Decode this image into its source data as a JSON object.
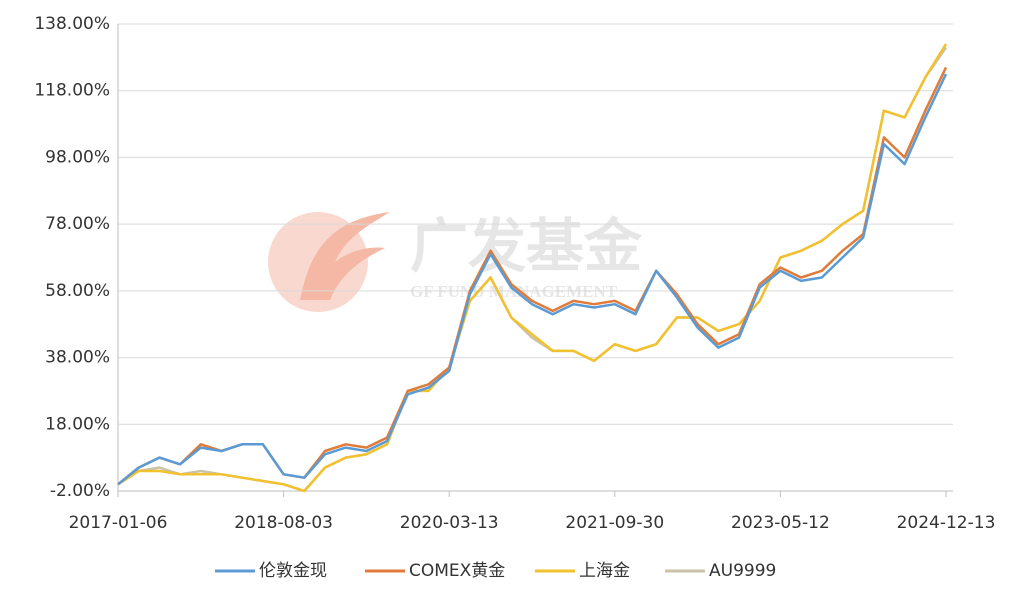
{
  "chart_data": {
    "type": "line",
    "watermark": {
      "title": "广发基金",
      "subtitle": "GF FUND MANAGEMENT"
    },
    "categories": [
      "2017-01-06",
      null,
      null,
      null,
      null,
      null,
      null,
      null,
      "2018-08-03",
      null,
      null,
      null,
      null,
      null,
      null,
      null,
      "2020-03-13",
      null,
      null,
      null,
      null,
      null,
      null,
      null,
      "2021-09-30",
      null,
      null,
      null,
      null,
      null,
      null,
      null,
      "2023-05-12",
      null,
      null,
      null,
      null,
      null,
      null,
      null,
      "2024-12-13"
    ],
    "series": [
      {
        "name": "伦敦金现",
        "color": "#5b9bd5",
        "values": [
          0,
          5,
          8,
          6,
          11,
          10,
          12,
          12,
          3,
          2,
          9,
          11,
          10,
          13,
          27,
          29,
          34,
          57,
          69,
          59,
          54,
          51,
          54,
          53,
          54,
          51,
          64,
          56,
          47,
          41,
          44,
          59,
          64,
          61,
          62,
          68,
          74,
          102,
          96,
          110,
          123
        ]
      },
      {
        "name": "COMEX黄金",
        "color": "#e07b39",
        "values": [
          0,
          5,
          8,
          6,
          12,
          10,
          12,
          12,
          3,
          2,
          10,
          12,
          11,
          14,
          28,
          30,
          35,
          58,
          70,
          60,
          55,
          52,
          55,
          54,
          55,
          52,
          64,
          57,
          48,
          42,
          45,
          60,
          65,
          62,
          64,
          70,
          75,
          104,
          98,
          112,
          125
        ]
      },
      {
        "name": "上海金",
        "color": "#f2c12e",
        "values": [
          0,
          4,
          4,
          3,
          3,
          3,
          2,
          1,
          0,
          -2,
          5,
          8,
          9,
          12,
          28,
          28,
          35,
          55,
          62,
          50,
          45,
          40,
          40,
          37,
          42,
          40,
          42,
          50,
          50,
          46,
          48,
          55,
          68,
          70,
          73,
          78,
          82,
          112,
          110,
          122,
          132
        ]
      },
      {
        "name": "AU9999",
        "color": "#c9c2a8",
        "values": [
          0,
          4,
          5,
          3,
          4,
          3,
          2,
          1,
          0,
          -2,
          5,
          8,
          9,
          12,
          28,
          28,
          35,
          55,
          62,
          50,
          44,
          40,
          40,
          37,
          42,
          40,
          42,
          50,
          50,
          46,
          48,
          55,
          68,
          70,
          73,
          78,
          82,
          112,
          110,
          122,
          131
        ]
      }
    ],
    "ylim": [
      -2,
      138
    ],
    "yticks": [
      {
        "value": -2,
        "label": "-2.00%"
      },
      {
        "value": 18,
        "label": "18.00%"
      },
      {
        "value": 38,
        "label": "38.00%"
      },
      {
        "value": 58,
        "label": "58.00%"
      },
      {
        "value": 78,
        "label": "78.00%"
      },
      {
        "value": 98,
        "label": "98.00%"
      },
      {
        "value": 118,
        "label": "118.00%"
      },
      {
        "value": 138,
        "label": "138.00%"
      }
    ],
    "grid": true,
    "legend": "bottom"
  }
}
